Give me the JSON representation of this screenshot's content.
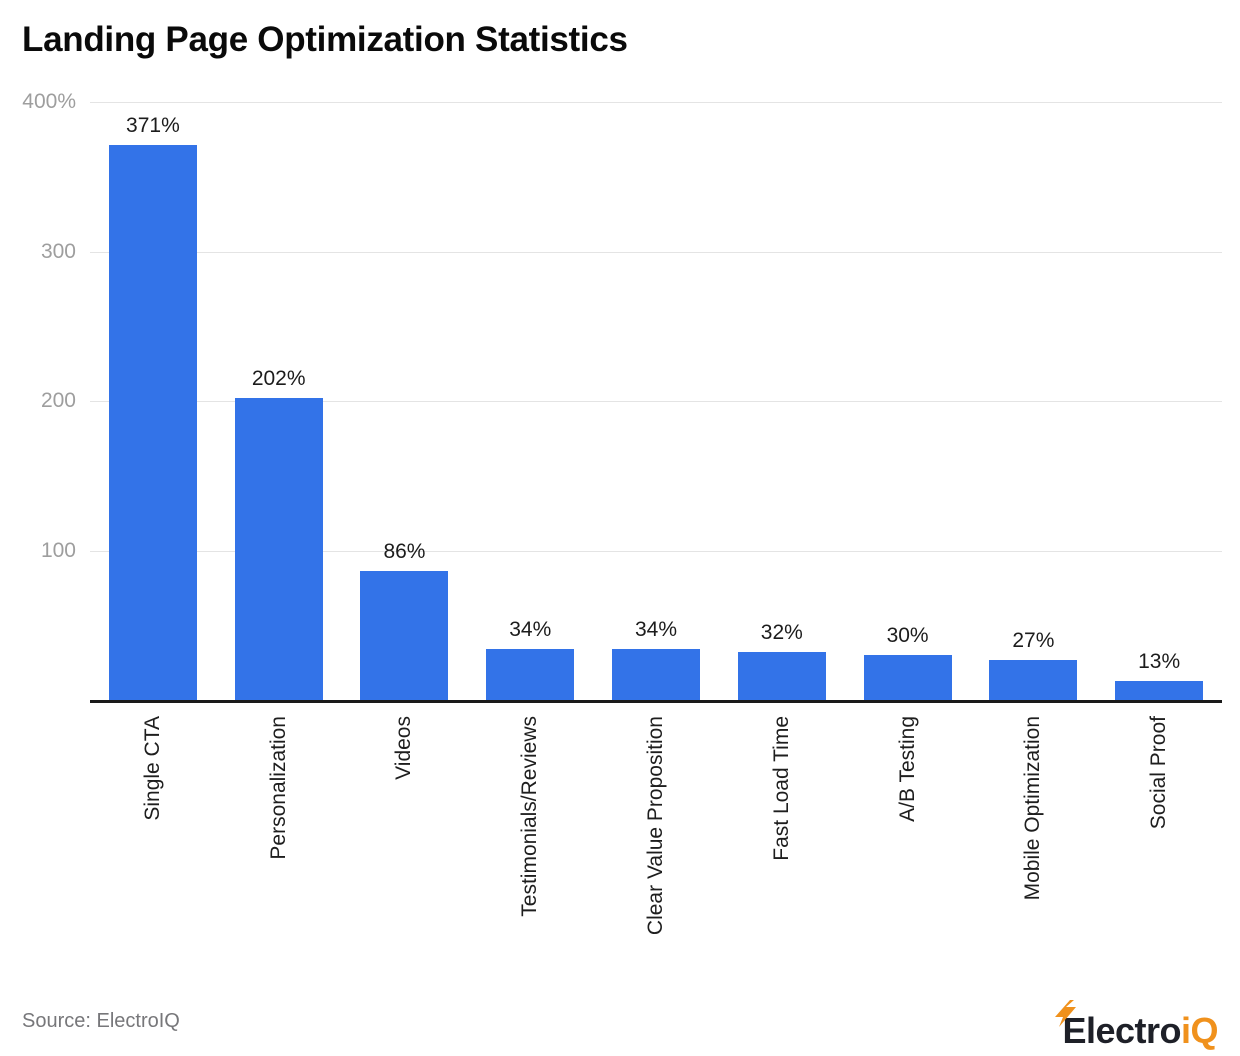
{
  "page": {
    "title": "Landing Page Optimization Statistics",
    "source": "Source: ElectroIQ",
    "brand": {
      "dark": "Electro",
      "accent": "iQ"
    }
  },
  "colors": {
    "bar": "#3373E8",
    "grid_line": "#E4E4E4",
    "axis_line": "#1A1A1A",
    "y_tick_label": "#9E9E9E",
    "value_label": "#1C1C1C",
    "category_label": "#1E1E1E",
    "source_text": "#77777A",
    "brand_dark": "#1E2028",
    "brand_accent": "#F0911C"
  },
  "chart_data": {
    "type": "bar",
    "title": "Landing Page Optimization Statistics",
    "categories": [
      "Single CTA",
      "Personalization",
      "Videos",
      "Testimonials/Reviews",
      "Clear Value Proposition",
      "Fast Load Time",
      "A/B Testing",
      "Mobile Optimization",
      "Social Proof"
    ],
    "values": [
      371,
      202,
      86,
      34,
      34,
      32,
      30,
      27,
      13
    ],
    "value_labels": [
      "371%",
      "202%",
      "86%",
      "34%",
      "34%",
      "32%",
      "30%",
      "27%",
      "13%"
    ],
    "unit": "%",
    "xlabel": "",
    "ylabel": "",
    "ylim": [
      0,
      400
    ],
    "yticks": [
      {
        "value": 400,
        "label": "400%"
      },
      {
        "value": 300,
        "label": "300"
      },
      {
        "value": 200,
        "label": "200"
      },
      {
        "value": 100,
        "label": "100"
      }
    ],
    "grid": true,
    "legend": false,
    "bar_color": "#3373E8"
  }
}
